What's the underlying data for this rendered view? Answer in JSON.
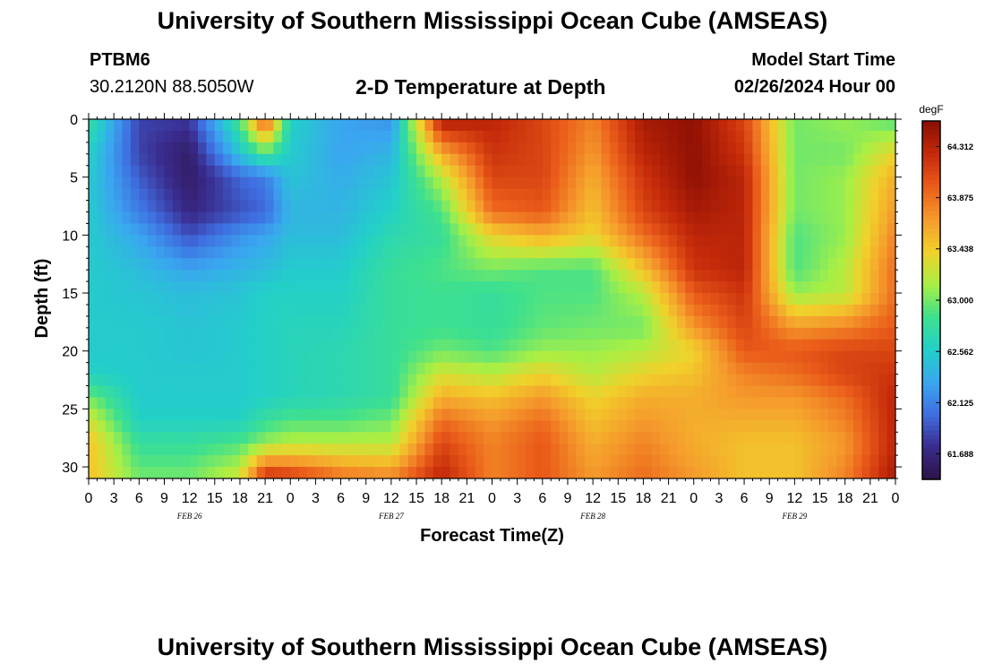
{
  "header": {
    "title": "University of Southern Mississippi Ocean Cube (AMSEAS)",
    "footer_title": "University of Southern Mississippi Ocean Cube (AMSEAS)",
    "station_name": "PTBM6",
    "station_coords": "30.2120N  88.5050W",
    "plot_title": "2-D Temperature at Depth",
    "start_label": "Model Start Time",
    "start_value": "02/26/2024 Hour 00"
  },
  "chart_data": {
    "type": "heatmap",
    "xlabel": "Forecast Time(Z)",
    "ylabel": "Depth (ft)",
    "x_range_hours": [
      0,
      96
    ],
    "y_range_ft": [
      0,
      31
    ],
    "x_tick_labels": [
      "0",
      "3",
      "6",
      "9",
      "12",
      "15",
      "18",
      "21",
      "0",
      "3",
      "6",
      "9",
      "12",
      "15",
      "18",
      "21",
      "0",
      "3",
      "6",
      "9",
      "12",
      "15",
      "18",
      "21",
      "0",
      "3",
      "6",
      "9",
      "12",
      "15",
      "18",
      "21",
      "0"
    ],
    "y_ticks": [
      0,
      5,
      10,
      15,
      20,
      25,
      30
    ],
    "date_labels": [
      {
        "label": "FEB 26",
        "hour": 12
      },
      {
        "label": "FEB 27",
        "hour": 36
      },
      {
        "label": "FEB 28",
        "hour": 60
      },
      {
        "label": "FEB 29",
        "hour": 84
      }
    ],
    "colorbar": {
      "unit": "degF",
      "range": [
        61.47,
        64.53
      ],
      "tick_labels": [
        "64.312",
        "63.875",
        "63.438",
        "63.000",
        "62.562",
        "62.125",
        "61.688"
      ],
      "tick_values": [
        64.312,
        63.875,
        63.438,
        63.0,
        62.562,
        62.125,
        61.688
      ],
      "colors": [
        "#2b1545",
        "#3a2a8c",
        "#3f6ee0",
        "#3aa6f0",
        "#22d0c8",
        "#3ee08e",
        "#a9ef44",
        "#f1d12b",
        "#f59a2c",
        "#ea5c1a",
        "#c52a0a",
        "#8a0e04"
      ]
    },
    "depth_levels_ft": [
      0,
      3,
      5,
      8,
      10,
      13,
      15,
      18,
      20,
      22,
      24,
      26,
      28,
      31
    ],
    "time_hours": [
      0,
      6,
      12,
      18,
      21,
      24,
      30,
      36,
      42,
      48,
      54,
      60,
      66,
      72,
      78,
      84,
      90,
      96
    ],
    "temperature_degF": [
      [
        62.8,
        61.85,
        61.8,
        62.9,
        64.1,
        62.6,
        62.3,
        62.2,
        64.4,
        64.3,
        64.1,
        63.8,
        64.4,
        64.5,
        64.1,
        63.0,
        63.1,
        62.9
      ],
      [
        62.6,
        61.85,
        61.6,
        62.5,
        62.9,
        62.55,
        62.3,
        62.4,
        63.6,
        64.2,
        64.1,
        63.7,
        64.3,
        64.5,
        64.2,
        63.0,
        63.0,
        63.4
      ],
      [
        62.55,
        61.95,
        61.6,
        62.0,
        62.1,
        62.5,
        62.35,
        62.5,
        63.2,
        64.1,
        64.1,
        63.6,
        64.2,
        64.5,
        64.3,
        63.0,
        63.1,
        63.6
      ],
      [
        62.55,
        62.1,
        61.7,
        61.9,
        62.0,
        62.4,
        62.4,
        62.6,
        62.9,
        63.9,
        64.0,
        63.5,
        64.1,
        64.4,
        64.3,
        63.0,
        63.1,
        63.7
      ],
      [
        62.55,
        62.3,
        61.9,
        62.2,
        62.3,
        62.45,
        62.45,
        62.7,
        62.8,
        63.4,
        63.6,
        63.4,
        63.9,
        64.3,
        64.3,
        62.9,
        63.1,
        63.8
      ],
      [
        62.55,
        62.45,
        62.3,
        62.4,
        62.45,
        62.55,
        62.55,
        62.8,
        62.9,
        63.0,
        62.9,
        62.9,
        63.5,
        64.2,
        64.3,
        62.9,
        63.2,
        63.9
      ],
      [
        62.55,
        62.5,
        62.45,
        62.5,
        62.6,
        62.6,
        62.6,
        62.8,
        62.85,
        62.8,
        62.9,
        62.9,
        63.2,
        64.0,
        64.2,
        63.1,
        63.2,
        63.9
      ],
      [
        62.55,
        62.55,
        62.5,
        62.55,
        62.6,
        62.65,
        62.65,
        62.8,
        62.85,
        62.8,
        62.95,
        63.0,
        63.0,
        63.7,
        64.1,
        63.7,
        63.8,
        64.0
      ],
      [
        62.55,
        62.55,
        62.5,
        62.55,
        62.6,
        62.65,
        62.7,
        62.8,
        63.0,
        62.9,
        63.1,
        63.1,
        63.2,
        63.4,
        64.0,
        64.0,
        64.1,
        64.1
      ],
      [
        62.6,
        62.55,
        62.55,
        62.55,
        62.6,
        62.65,
        62.7,
        62.8,
        63.3,
        63.2,
        63.4,
        63.2,
        63.4,
        63.5,
        63.8,
        63.9,
        64.1,
        64.2
      ],
      [
        63.0,
        62.55,
        62.55,
        62.55,
        62.6,
        62.65,
        62.7,
        62.8,
        63.6,
        63.5,
        63.7,
        63.4,
        63.6,
        63.6,
        63.7,
        63.7,
        63.9,
        64.3
      ],
      [
        63.3,
        62.6,
        62.6,
        62.6,
        62.8,
        62.9,
        62.9,
        63.0,
        63.9,
        63.7,
        63.9,
        63.5,
        63.7,
        63.6,
        63.6,
        63.6,
        63.8,
        64.3
      ],
      [
        63.5,
        62.8,
        62.8,
        62.9,
        63.1,
        63.2,
        63.2,
        63.2,
        64.1,
        63.8,
        64.0,
        63.6,
        63.8,
        63.6,
        63.5,
        63.5,
        63.7,
        64.3
      ],
      [
        63.5,
        63.0,
        63.0,
        63.3,
        64.3,
        64.2,
        63.9,
        63.8,
        64.3,
        63.8,
        64.0,
        63.7,
        63.9,
        63.7,
        63.5,
        63.5,
        63.8,
        64.4
      ]
    ]
  }
}
